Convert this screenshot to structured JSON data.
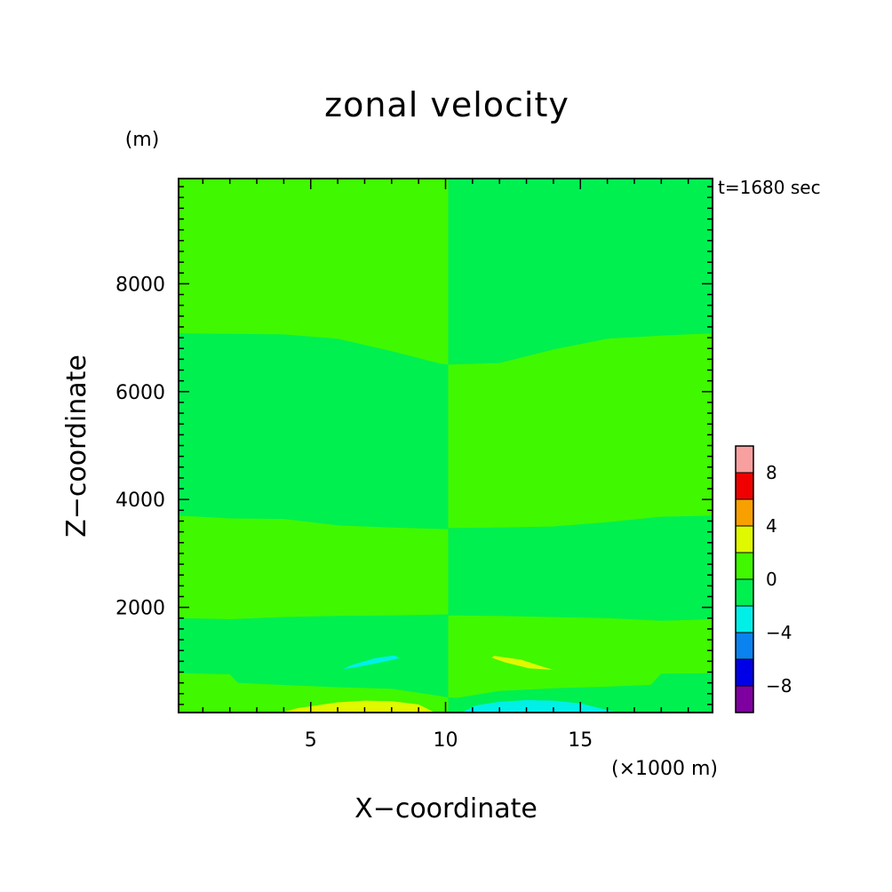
{
  "chart_data": {
    "type": "heatmap",
    "title": "zonal velocity",
    "xlabel": "X−coordinate",
    "ylabel": "Z−coordinate",
    "x_unit": "(×1000 m)",
    "y_unit": "(m)",
    "time_label": "t=1680 sec",
    "xlim": [
      0.1,
      19.9
    ],
    "ylim": [
      50,
      9950
    ],
    "x_ticks": [
      5,
      10,
      15
    ],
    "x_tick_labels": [
      "5",
      "10",
      "15"
    ],
    "y_ticks": [
      2000,
      4000,
      6000,
      8000
    ],
    "y_tick_labels": [
      "2000",
      "4000",
      "6000",
      "8000"
    ],
    "colorbar": {
      "levels": [
        -10,
        -8,
        -6,
        -4,
        -2,
        0,
        2,
        4,
        6,
        8,
        10
      ],
      "tick_values": [
        -8,
        -4,
        0,
        4,
        8
      ],
      "tick_labels": [
        "−8",
        "−4",
        "0",
        "4",
        "8"
      ],
      "colors": [
        "#7f00a0",
        "#0000e8",
        "#0a82f0",
        "#00f0e8",
        "#00f050",
        "#40f800",
        "#e0f800",
        "#f8a000",
        "#f00000",
        "#f8a0a0"
      ]
    },
    "regions": [
      {
        "range": "0 to 2",
        "color": "#40f800",
        "points": [
          [
            0.1,
            9950
          ],
          [
            10.1,
            9950
          ],
          [
            10.1,
            6500
          ],
          [
            9.8,
            6520
          ],
          [
            8,
            6750
          ],
          [
            6,
            6980
          ],
          [
            4,
            7060
          ],
          [
            0.1,
            7080
          ]
        ]
      },
      {
        "range": "0 to 2",
        "color": "#40f800",
        "points": [
          [
            0.1,
            3700
          ],
          [
            2,
            3650
          ],
          [
            4,
            3640
          ],
          [
            6,
            3520
          ],
          [
            8,
            3480
          ],
          [
            10.1,
            3450
          ],
          [
            10.1,
            1870
          ],
          [
            8,
            1850
          ],
          [
            6,
            1840
          ],
          [
            4,
            1820
          ],
          [
            2,
            1780
          ],
          [
            0.1,
            1800
          ]
        ]
      },
      {
        "range": "0 to 2",
        "color": "#40f800",
        "points": [
          [
            0.1,
            780
          ],
          [
            2,
            760
          ],
          [
            2.3,
            600
          ],
          [
            4,
            560
          ],
          [
            6,
            520
          ],
          [
            8,
            490
          ],
          [
            9.5,
            380
          ],
          [
            10.1,
            330
          ],
          [
            10.1,
            50
          ],
          [
            0.1,
            50
          ]
        ]
      },
      {
        "range": "0 to 2",
        "color": "#40f800",
        "points": [
          [
            10.1,
            6500
          ],
          [
            12,
            6530
          ],
          [
            14,
            6780
          ],
          [
            16,
            6980
          ],
          [
            18,
            7040
          ],
          [
            19.9,
            7080
          ],
          [
            19.9,
            3700
          ],
          [
            18,
            3680
          ],
          [
            16,
            3580
          ],
          [
            14,
            3500
          ],
          [
            12,
            3480
          ],
          [
            10.1,
            3470
          ]
        ]
      },
      {
        "range": "0 to 2",
        "color": "#40f800",
        "points": [
          [
            10.1,
            1850
          ],
          [
            12,
            1840
          ],
          [
            14,
            1820
          ],
          [
            16,
            1800
          ],
          [
            18,
            1750
          ],
          [
            19.9,
            1780
          ],
          [
            19.9,
            780
          ],
          [
            18,
            770
          ],
          [
            17.6,
            560
          ],
          [
            16,
            530
          ],
          [
            14,
            500
          ],
          [
            12,
            450
          ],
          [
            10.4,
            320
          ],
          [
            10.1,
            330
          ]
        ]
      },
      {
        "range": "2 to 4",
        "color": "#e0f800",
        "points": [
          [
            3.9,
            50
          ],
          [
            4.5,
            130
          ],
          [
            6,
            240
          ],
          [
            7,
            270
          ],
          [
            8,
            260
          ],
          [
            9,
            200
          ],
          [
            9.6,
            50
          ]
        ]
      },
      {
        "range": "2 to 4",
        "color": "#e0f800",
        "points": [
          [
            11.8,
            1100
          ],
          [
            12.8,
            1030
          ],
          [
            13.6,
            900
          ],
          [
            14,
            840
          ],
          [
            13.1,
            870
          ],
          [
            12.2,
            980
          ],
          [
            11.7,
            1070
          ]
        ]
      },
      {
        "range": "-4 to -2",
        "color": "#00f0e8",
        "points": [
          [
            10.6,
            50
          ],
          [
            11.1,
            180
          ],
          [
            12,
            250
          ],
          [
            13,
            280
          ],
          [
            14,
            270
          ],
          [
            15,
            220
          ],
          [
            15.8,
            120
          ],
          [
            16.4,
            50
          ]
        ]
      },
      {
        "range": "-4 to -2",
        "color": "#00f0e8",
        "points": [
          [
            6.2,
            850
          ],
          [
            6.8,
            900
          ],
          [
            7.8,
            1000
          ],
          [
            8.3,
            1060
          ],
          [
            8.1,
            1110
          ],
          [
            7.4,
            1060
          ],
          [
            6.5,
            930
          ]
        ]
      }
    ]
  }
}
